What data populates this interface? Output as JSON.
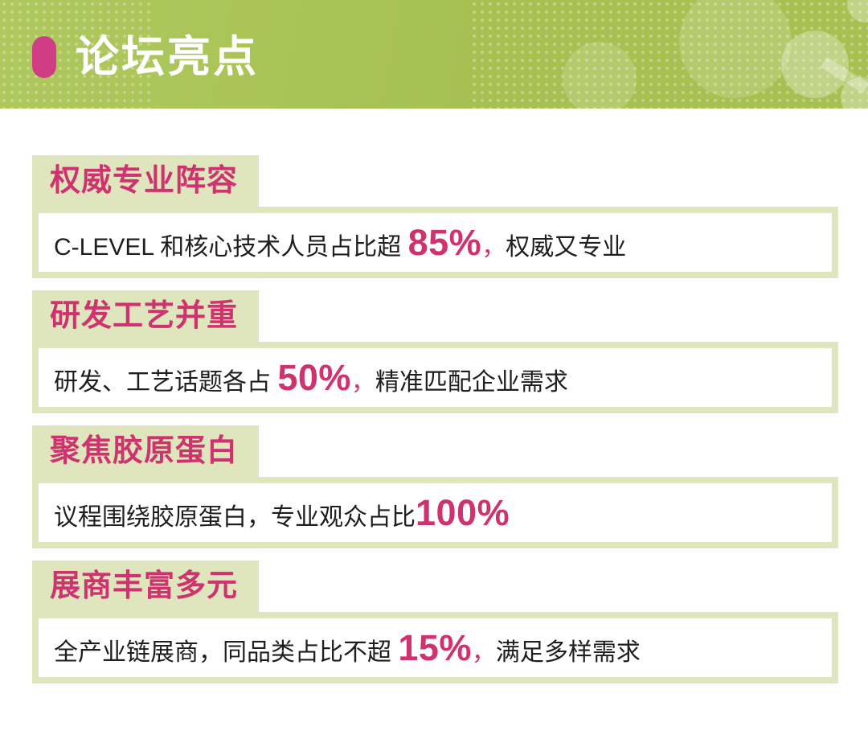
{
  "colors": {
    "header_green": "#a6c152",
    "header_green_light": "#aec85e",
    "pale_green": "#dfe5bc",
    "accent_pink": "#cf336f",
    "pill_pink": "#d23c86",
    "body_text": "#1e1e1e",
    "title_white": "#ffffff"
  },
  "header": {
    "title": "论坛亮点",
    "icons": {
      "pill_icon": "pink-rounded-pill",
      "molecule_icon": "light-green-molecule-circles",
      "dot_pattern": "halftone-dot-grid"
    }
  },
  "sections": [
    {
      "tab": "权威专业阵容",
      "pre": "C-LEVEL 和核心技术人员占比超 ",
      "num": "85%",
      "sep": "，",
      "post": "权威又专业"
    },
    {
      "tab": "研发工艺并重",
      "pre": "研发、工艺话题各占 ",
      "num": "50%",
      "sep": "，",
      "post": "精准匹配企业需求"
    },
    {
      "tab": "聚焦胶原蛋白",
      "pre": "议程围绕胶原蛋白，专业观众占比",
      "num": "100%",
      "sep": "",
      "post": ""
    },
    {
      "tab": "展商丰富多元",
      "pre": "全产业链展商，同品类占比不超 ",
      "num": "15%",
      "sep": "，",
      "post": "满足多样需求"
    }
  ]
}
